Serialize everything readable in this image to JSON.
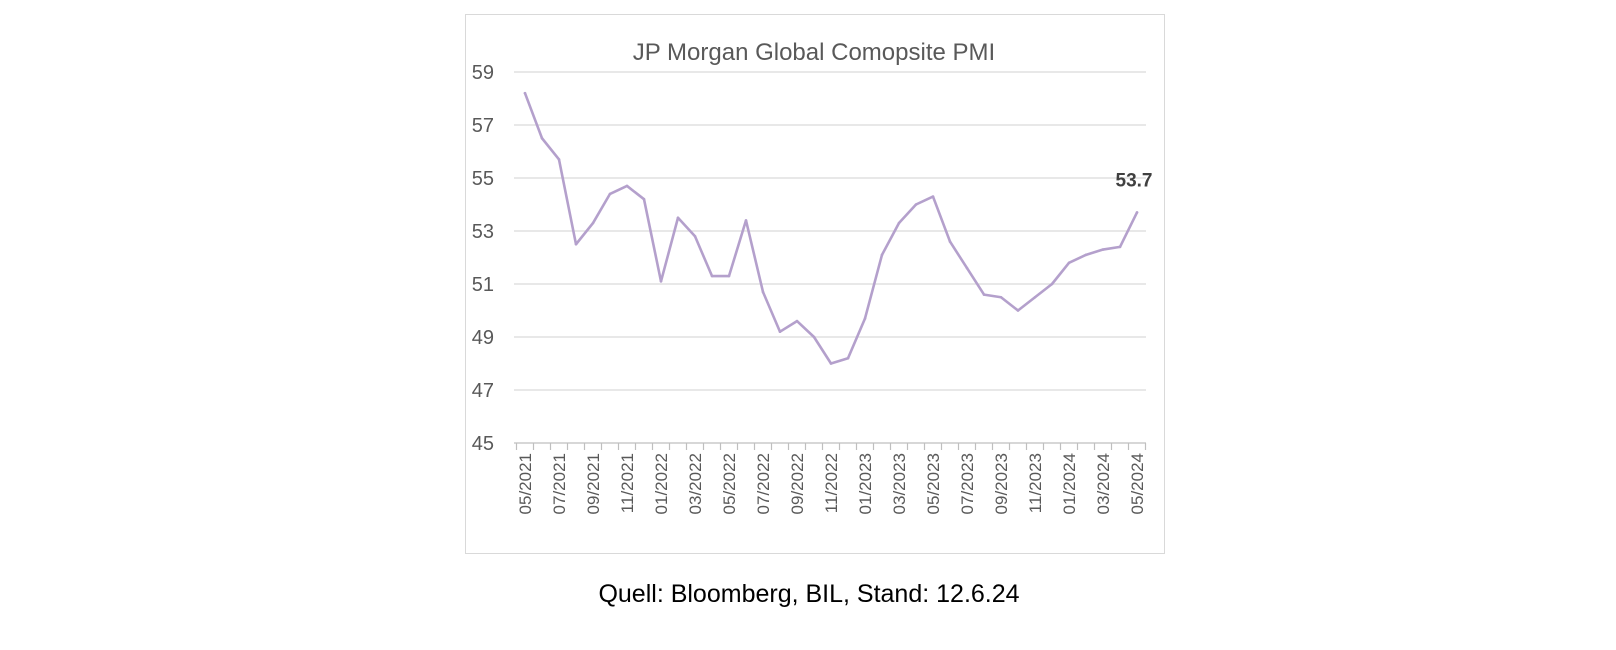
{
  "chart_data": {
    "type": "line",
    "title": "JP Morgan Global Comopsite PMI",
    "xlabel": "",
    "ylabel": "",
    "ylim": [
      45,
      59
    ],
    "yticks": [
      "59",
      "57",
      "55",
      "53",
      "51",
      "49",
      "47",
      "45"
    ],
    "ytick_values": [
      59,
      57,
      55,
      53,
      51,
      49,
      47,
      45
    ],
    "xtick_labels": [
      "05/2021",
      "07/2021",
      "09/2021",
      "11/2021",
      "01/2022",
      "03/2022",
      "05/2022",
      "07/2022",
      "09/2022",
      "11/2022",
      "01/2023",
      "03/2023",
      "05/2023",
      "07/2023",
      "09/2023",
      "11/2023",
      "01/2024",
      "03/2024",
      "05/2024"
    ],
    "grid": true,
    "legend": "none",
    "series": [
      {
        "color": "#b4a0cc",
        "x": [
          "05/2021",
          "06/2021",
          "07/2021",
          "08/2021",
          "09/2021",
          "10/2021",
          "11/2021",
          "12/2021",
          "01/2022",
          "02/2022",
          "03/2022",
          "04/2022",
          "05/2022",
          "06/2022",
          "07/2022",
          "08/2022",
          "09/2022",
          "10/2022",
          "11/2022",
          "12/2022",
          "01/2023",
          "02/2023",
          "03/2023",
          "04/2023",
          "05/2023",
          "06/2023",
          "07/2023",
          "08/2023",
          "09/2023",
          "10/2023",
          "11/2023",
          "12/2023",
          "01/2024",
          "02/2024",
          "03/2024",
          "04/2024",
          "05/2024"
        ],
        "values": [
          58.2,
          56.5,
          55.7,
          52.5,
          53.3,
          54.4,
          54.7,
          54.2,
          51.1,
          53.5,
          52.8,
          51.3,
          51.3,
          53.4,
          50.7,
          49.2,
          49.6,
          49.0,
          48.0,
          48.2,
          49.7,
          52.1,
          53.3,
          54.0,
          54.3,
          52.6,
          51.6,
          50.6,
          50.5,
          50.0,
          50.5,
          51.0,
          51.8,
          52.1,
          52.3,
          52.4,
          53.7
        ]
      }
    ],
    "data_label": "53.7"
  },
  "source_note": "Quell: Bloomberg, BIL, Stand: 12.6.24",
  "colors": {
    "line": "#b4a0cc",
    "grid": "#d9d9d9",
    "axis": "#bfbfbf",
    "text": "#595959"
  }
}
